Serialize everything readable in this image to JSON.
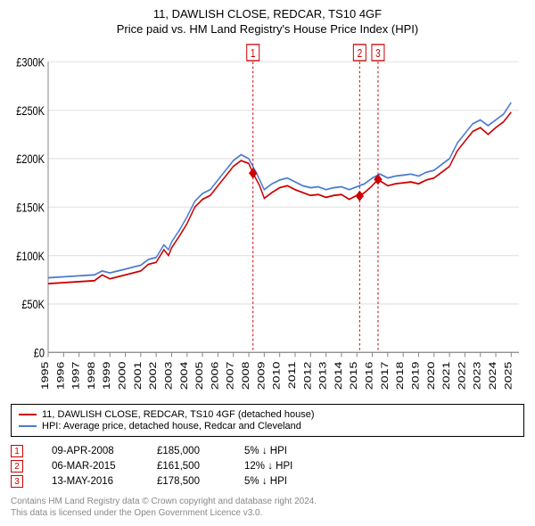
{
  "title1": "11, DAWLISH CLOSE, REDCAR, TS10 4GF",
  "title2": "Price paid vs. HM Land Registry's House Price Index (HPI)",
  "chart": {
    "type": "line",
    "background_color": "#ffffff",
    "grid_color": "#e6e6e6",
    "axis_color": "#888888",
    "y": {
      "min": 0,
      "max": 300000,
      "step": 50000,
      "label_prefix": "£",
      "label_suffix": "K",
      "divide": 1000
    },
    "x": {
      "min": 1995,
      "max": 2025.5,
      "years": [
        1995,
        1996,
        1997,
        1998,
        1999,
        2000,
        2001,
        2002,
        2003,
        2004,
        2005,
        2006,
        2007,
        2008,
        2009,
        2010,
        2011,
        2012,
        2013,
        2014,
        2015,
        2016,
        2017,
        2018,
        2019,
        2020,
        2021,
        2022,
        2023,
        2024,
        2025
      ]
    },
    "series": [
      {
        "name": "property",
        "color": "#cc0000",
        "label": "11, DAWLISH CLOSE, REDCAR, TS10 4GF (detached house)",
        "points": [
          [
            1995,
            71000
          ],
          [
            1996,
            72000
          ],
          [
            1997,
            73000
          ],
          [
            1998,
            74000
          ],
          [
            1998.5,
            80000
          ],
          [
            1999,
            76000
          ],
          [
            1999.5,
            78000
          ],
          [
            2000,
            80000
          ],
          [
            2000.5,
            82000
          ],
          [
            2001,
            84000
          ],
          [
            2001.5,
            91000
          ],
          [
            2002,
            93000
          ],
          [
            2002.5,
            106000
          ],
          [
            2002.8,
            100000
          ],
          [
            2003,
            108000
          ],
          [
            2003.5,
            120000
          ],
          [
            2004,
            133000
          ],
          [
            2004.5,
            150000
          ],
          [
            2005,
            158000
          ],
          [
            2005.5,
            162000
          ],
          [
            2006,
            172000
          ],
          [
            2006.5,
            182000
          ],
          [
            2007,
            192000
          ],
          [
            2007.5,
            198000
          ],
          [
            2008,
            195000
          ],
          [
            2008.27,
            185000
          ],
          [
            2008.7,
            172000
          ],
          [
            2009,
            159000
          ],
          [
            2009.5,
            165000
          ],
          [
            2010,
            170000
          ],
          [
            2010.5,
            172000
          ],
          [
            2011,
            168000
          ],
          [
            2011.5,
            165000
          ],
          [
            2012,
            162000
          ],
          [
            2012.5,
            163000
          ],
          [
            2013,
            160000
          ],
          [
            2013.5,
            162000
          ],
          [
            2014,
            163000
          ],
          [
            2014.5,
            158000
          ],
          [
            2015,
            162000
          ],
          [
            2015.18,
            161500
          ],
          [
            2015.5,
            165000
          ],
          [
            2016,
            172000
          ],
          [
            2016.37,
            178500
          ],
          [
            2016.7,
            175000
          ],
          [
            2017,
            172000
          ],
          [
            2017.5,
            174000
          ],
          [
            2018,
            175000
          ],
          [
            2018.5,
            176000
          ],
          [
            2019,
            174000
          ],
          [
            2019.5,
            178000
          ],
          [
            2020,
            180000
          ],
          [
            2020.5,
            186000
          ],
          [
            2021,
            192000
          ],
          [
            2021.5,
            208000
          ],
          [
            2022,
            218000
          ],
          [
            2022.5,
            228000
          ],
          [
            2023,
            232000
          ],
          [
            2023.5,
            225000
          ],
          [
            2024,
            232000
          ],
          [
            2024.5,
            238000
          ],
          [
            2025,
            248000
          ]
        ]
      },
      {
        "name": "hpi",
        "color": "#4a7bd0",
        "label": "HPI: Average price, detached house, Redcar and Cleveland",
        "points": [
          [
            1995,
            77000
          ],
          [
            1996,
            78000
          ],
          [
            1997,
            79000
          ],
          [
            1998,
            80000
          ],
          [
            1998.5,
            84000
          ],
          [
            1999,
            82000
          ],
          [
            1999.5,
            84000
          ],
          [
            2000,
            86000
          ],
          [
            2000.5,
            88000
          ],
          [
            2001,
            90000
          ],
          [
            2001.5,
            96000
          ],
          [
            2002,
            98000
          ],
          [
            2002.5,
            111000
          ],
          [
            2002.8,
            106000
          ],
          [
            2003,
            114000
          ],
          [
            2003.5,
            126000
          ],
          [
            2004,
            140000
          ],
          [
            2004.5,
            156000
          ],
          [
            2005,
            164000
          ],
          [
            2005.5,
            168000
          ],
          [
            2006,
            178000
          ],
          [
            2006.5,
            188000
          ],
          [
            2007,
            198000
          ],
          [
            2007.5,
            204000
          ],
          [
            2008,
            200000
          ],
          [
            2008.5,
            185000
          ],
          [
            2009,
            168000
          ],
          [
            2009.5,
            174000
          ],
          [
            2010,
            178000
          ],
          [
            2010.5,
            180000
          ],
          [
            2011,
            176000
          ],
          [
            2011.5,
            172000
          ],
          [
            2012,
            170000
          ],
          [
            2012.5,
            171000
          ],
          [
            2013,
            168000
          ],
          [
            2013.5,
            170000
          ],
          [
            2014,
            171000
          ],
          [
            2014.5,
            168000
          ],
          [
            2015,
            171000
          ],
          [
            2015.5,
            174000
          ],
          [
            2016,
            180000
          ],
          [
            2016.5,
            184000
          ],
          [
            2017,
            180000
          ],
          [
            2017.5,
            182000
          ],
          [
            2018,
            183000
          ],
          [
            2018.5,
            184000
          ],
          [
            2019,
            182000
          ],
          [
            2019.5,
            186000
          ],
          [
            2020,
            188000
          ],
          [
            2020.5,
            194000
          ],
          [
            2021,
            200000
          ],
          [
            2021.5,
            216000
          ],
          [
            2022,
            226000
          ],
          [
            2022.5,
            236000
          ],
          [
            2023,
            240000
          ],
          [
            2023.5,
            234000
          ],
          [
            2024,
            240000
          ],
          [
            2024.5,
            246000
          ],
          [
            2025,
            258000
          ]
        ]
      }
    ],
    "sale_markers": [
      {
        "num": "1",
        "year": 2008.27,
        "price": 185000,
        "color": "#cc0000"
      },
      {
        "num": "2",
        "year": 2015.18,
        "price": 161500,
        "color": "#cc0000"
      },
      {
        "num": "3",
        "year": 2016.37,
        "price": 178500,
        "color": "#cc0000"
      }
    ],
    "marker_top_y": 10,
    "sale_point_size": 4
  },
  "legend": {
    "items": [
      {
        "color": "#cc0000",
        "label": "11, DAWLISH CLOSE, REDCAR, TS10 4GF (detached house)"
      },
      {
        "color": "#4a7bd0",
        "label": "HPI: Average price, detached house, Redcar and Cleveland"
      }
    ]
  },
  "sales": [
    {
      "num": "1",
      "date": "09-APR-2008",
      "price": "£185,000",
      "diff": "5% ↓ HPI"
    },
    {
      "num": "2",
      "date": "06-MAR-2015",
      "price": "£161,500",
      "diff": "12% ↓ HPI"
    },
    {
      "num": "3",
      "date": "13-MAY-2016",
      "price": "£178,500",
      "diff": "5% ↓ HPI"
    }
  ],
  "footer": {
    "line1": "Contains HM Land Registry data © Crown copyright and database right 2024.",
    "line2": "This data is licensed under the Open Government Licence v3.0."
  }
}
